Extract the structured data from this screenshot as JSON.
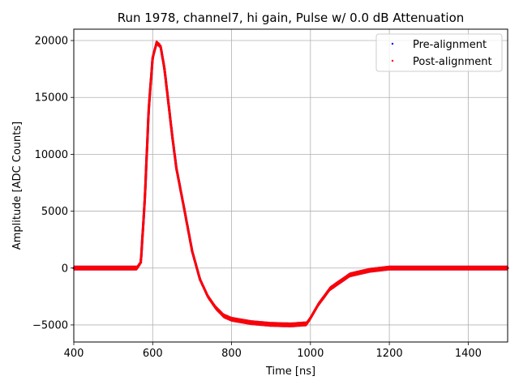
{
  "chart_data": {
    "type": "scatter",
    "title": "Run 1978, channel7, hi gain, Pulse w/ 0.0 dB Attenuation",
    "xlabel": "Time [ns]",
    "ylabel": "Amplitude [ADC Counts]",
    "xlim": [
      400,
      1500
    ],
    "ylim": [
      -6500,
      21000
    ],
    "xticks": [
      400,
      600,
      800,
      1000,
      1200,
      1400
    ],
    "yticks": [
      -5000,
      0,
      5000,
      10000,
      15000,
      20000
    ],
    "ytick_labels": [
      "−5000",
      "0",
      "5000",
      "10000",
      "15000",
      "20000"
    ],
    "grid": true,
    "legend_position": "top-right",
    "series": [
      {
        "name": "Pre-alignment",
        "color": "#0000ff",
        "marker": "point",
        "x": [
          400,
          560,
          570,
          580,
          590,
          600,
          610,
          620,
          630,
          640,
          650,
          660,
          680,
          700,
          720,
          740,
          760,
          780,
          800,
          850,
          900,
          950,
          990,
          1000,
          1020,
          1050,
          1100,
          1150,
          1200,
          1300,
          1400,
          1500
        ],
        "y": [
          0,
          0,
          500,
          6000,
          14000,
          18500,
          19800,
          19500,
          17500,
          14500,
          11500,
          8800,
          5200,
          1500,
          -1000,
          -2500,
          -3500,
          -4200,
          -4500,
          -4800,
          -4950,
          -5000,
          -4900,
          -4400,
          -3200,
          -1800,
          -600,
          -200,
          0,
          0,
          0,
          0
        ]
      },
      {
        "name": "Post-alignment",
        "color": "#ff0000",
        "marker": "point",
        "x": [
          400,
          560,
          570,
          580,
          590,
          600,
          610,
          620,
          630,
          640,
          650,
          660,
          680,
          700,
          720,
          740,
          760,
          780,
          800,
          850,
          900,
          950,
          990,
          1000,
          1020,
          1050,
          1100,
          1150,
          1200,
          1300,
          1400,
          1500
        ],
        "y": [
          0,
          0,
          500,
          6000,
          14000,
          18500,
          19800,
          19500,
          17500,
          14500,
          11500,
          8800,
          5200,
          1500,
          -1000,
          -2500,
          -3500,
          -4200,
          -4500,
          -4800,
          -4950,
          -5000,
          -4900,
          -4400,
          -3200,
          -1800,
          -600,
          -200,
          0,
          0,
          0,
          0
        ]
      }
    ]
  }
}
